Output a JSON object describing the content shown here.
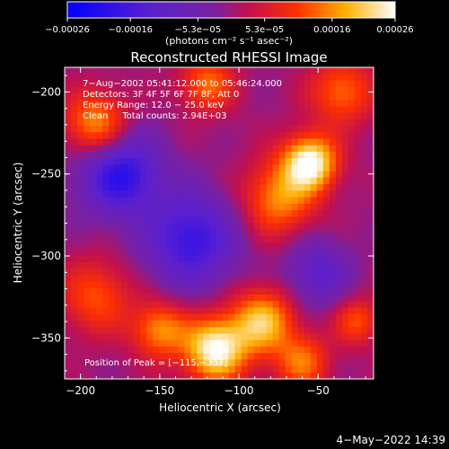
{
  "chart_data": {
    "type": "heatmap",
    "title": "Reconstructed RHESSI Image",
    "xlabel": "Heliocentric X (arcsec)",
    "ylabel": "Heliocentric Y (arcsec)",
    "xlim": [
      -210,
      -15
    ],
    "ylim": [
      -375,
      -185
    ],
    "x_ticks": [
      -200,
      -150,
      -100,
      -50
    ],
    "x_tick_labels": [
      "−200",
      "−150",
      "−100",
      "−50"
    ],
    "y_ticks": [
      -200,
      -250,
      -300,
      -350
    ],
    "y_tick_labels": [
      "−200",
      "−250",
      "−300",
      "−350"
    ],
    "colorbar": {
      "range": [
        -0.00026,
        0.00026
      ],
      "colormap": "blue-purple-red-yellow-white",
      "ticks": [
        -0.00026,
        -0.00016,
        -5.3e-05,
        5.3e-05,
        0.00016,
        0.00026
      ],
      "tick_labels": [
        "−0.00026",
        "−0.00016",
        "−5.3e−05",
        "5.3e−05",
        "0.00016",
        "0.00026"
      ],
      "unit_label": "(photons cm⁻² s⁻¹ asec⁻²)"
    },
    "annotations": [
      "7−Aug−2002 05:41:12.000 to 05:46:24.000",
      "Detectors: 3F 4F 5F 6F 7F 8F, Att 0",
      "Energy Range: 12.0 − 25.0 keV",
      "Clean     Total counts: 2.94E+03"
    ],
    "peak_label": "Position of Peak = [−115,−357]",
    "peak": {
      "x": -115,
      "y": -357
    },
    "sources": [
      {
        "x": -190,
        "y": -220,
        "sigma": 14,
        "amp": 0.00018
      },
      {
        "x": -120,
        "y": -195,
        "sigma": 12,
        "amp": 0.00014
      },
      {
        "x": -55,
        "y": -243,
        "sigma": 12,
        "amp": 0.00026
      },
      {
        "x": -75,
        "y": -265,
        "sigma": 16,
        "amp": 0.00016
      },
      {
        "x": -35,
        "y": -200,
        "sigma": 14,
        "amp": 0.00014
      },
      {
        "x": -190,
        "y": -325,
        "sigma": 16,
        "amp": 0.00012
      },
      {
        "x": -115,
        "y": -357,
        "sigma": 14,
        "amp": 0.00026
      },
      {
        "x": -85,
        "y": -340,
        "sigma": 14,
        "amp": 0.0002
      },
      {
        "x": -150,
        "y": -345,
        "sigma": 12,
        "amp": 0.00016
      },
      {
        "x": -60,
        "y": -365,
        "sigma": 12,
        "amp": 0.00014
      },
      {
        "x": -25,
        "y": -340,
        "sigma": 10,
        "amp": 0.00012
      },
      {
        "x": -175,
        "y": -250,
        "sigma": 18,
        "amp": -0.0002
      },
      {
        "x": -130,
        "y": -290,
        "sigma": 20,
        "amp": -0.00018
      },
      {
        "x": -50,
        "y": -310,
        "sigma": 14,
        "amp": -0.00012
      }
    ]
  },
  "footer": {
    "timestamp": "4−May−2022 14:39"
  }
}
